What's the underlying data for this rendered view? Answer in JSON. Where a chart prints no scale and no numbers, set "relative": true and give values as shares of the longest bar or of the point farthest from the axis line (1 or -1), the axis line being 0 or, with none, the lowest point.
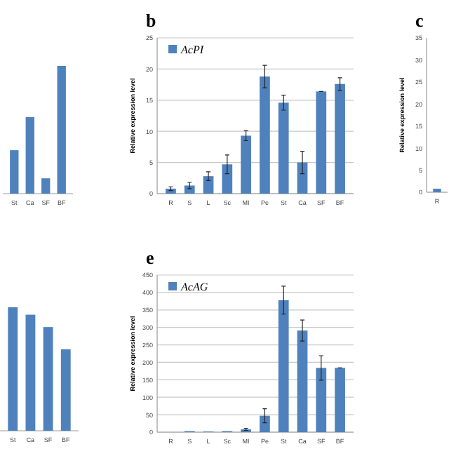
{
  "chart_data": [
    {
      "type": "bar",
      "categories": [
        "St",
        "Ca",
        "SF",
        "BF"
      ],
      "relative": true,
      "tick_labels": "x",
      "series": [
        {
          "color": "#4f81bd",
          "values": [
            0.34,
            0.6,
            0.12,
            1
          ]
        }
      ]
    },
    {
      "type": "bar",
      "title": "b",
      "ylabel": "Relative expression level",
      "categories": [
        "R",
        "S",
        "L",
        "Sc",
        "MI",
        "Pe",
        "St",
        "Ca",
        "SF",
        "BF"
      ],
      "ylim": [
        0,
        25
      ],
      "yticks": [
        0,
        5,
        10,
        15,
        20,
        25
      ],
      "grid": true,
      "legend": "top left",
      "series": [
        {
          "name": "AcPI",
          "color": "#4f81bd",
          "values": [
            0.8,
            1.3,
            2.8,
            4.7,
            9.3,
            18.8,
            14.6,
            5.0,
            16.4,
            17.6
          ],
          "errors": [
            0.3,
            0.5,
            0.7,
            1.5,
            0.8,
            1.8,
            1.2,
            1.8,
            0,
            1.0
          ]
        }
      ]
    },
    {
      "type": "bar",
      "title": "c",
      "ylabel": "Relative expression level",
      "categories": [
        "R"
      ],
      "ylim": [
        0,
        35
      ],
      "yticks": [
        0,
        5,
        10,
        15,
        20,
        25,
        30,
        35
      ],
      "series": [
        {
          "color": "#4f81bd",
          "values": [
            0.8
          ]
        }
      ]
    },
    {
      "type": "bar",
      "categories": [
        "St",
        "Ca",
        "SF",
        "BF"
      ],
      "relative": true,
      "tick_labels": "x",
      "series": [
        {
          "color": "#4f81bd",
          "values": [
            1,
            0.94,
            0.84,
            0.66
          ]
        }
      ]
    },
    {
      "type": "bar",
      "title": "e",
      "ylabel": "Relative expression level",
      "categories": [
        "R",
        "S",
        "L",
        "Sc",
        "MI",
        "Pe",
        "St",
        "Ca",
        "SF",
        "BF"
      ],
      "ylim": [
        0,
        450
      ],
      "yticks": [
        0,
        50,
        100,
        150,
        200,
        250,
        300,
        350,
        400,
        450
      ],
      "grid": true,
      "legend": "top left",
      "series": [
        {
          "name": "AcAG",
          "color": "#4f81bd",
          "values": [
            null,
            3,
            2,
            3,
            8,
            47,
            378,
            291,
            184,
            184
          ],
          "errors": [
            null,
            null,
            null,
            null,
            3,
            20,
            40,
            30,
            35,
            0
          ]
        }
      ]
    }
  ]
}
